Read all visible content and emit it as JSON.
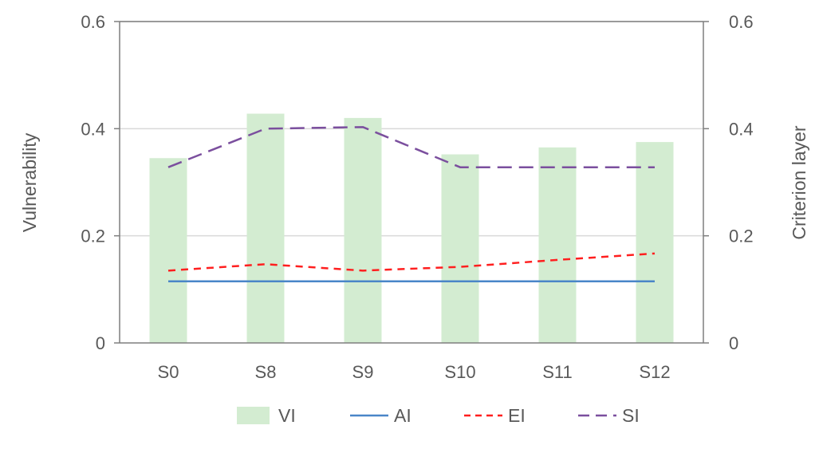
{
  "chart_data": {
    "type": "bar",
    "categories": [
      "S0",
      "S8",
      "S9",
      "S10",
      "S11",
      "S12"
    ],
    "series": [
      {
        "name": "VI",
        "kind": "bar",
        "axis": "left",
        "color": "#d3ecd1",
        "values": [
          0.345,
          0.428,
          0.42,
          0.352,
          0.365,
          0.375
        ]
      },
      {
        "name": "AI",
        "kind": "line",
        "axis": "right",
        "style": "solid",
        "color": "#4a86c8",
        "values": [
          0.115,
          0.115,
          0.115,
          0.115,
          0.115,
          0.115
        ]
      },
      {
        "name": "EI",
        "kind": "line",
        "axis": "right",
        "style": "dashed",
        "color": "#ff1f1f",
        "values": [
          0.135,
          0.147,
          0.135,
          0.142,
          0.155,
          0.167
        ]
      },
      {
        "name": "SI",
        "kind": "line",
        "axis": "right",
        "style": "dashed",
        "color": "#7b4f9e",
        "values": [
          0.328,
          0.4,
          0.403,
          0.328,
          0.328,
          0.328
        ]
      }
    ],
    "ylabel": "Vulnerability",
    "y2label": "Criterion layer",
    "ylim": [
      0,
      0.6
    ],
    "y2lim": [
      0,
      0.6
    ],
    "yticks": [
      "0",
      "0.2",
      "0.4",
      "0.6"
    ],
    "y2ticks": [
      "0",
      "0.2",
      "0.4",
      "0.6"
    ],
    "grid": true,
    "legend": "bottom-center"
  }
}
